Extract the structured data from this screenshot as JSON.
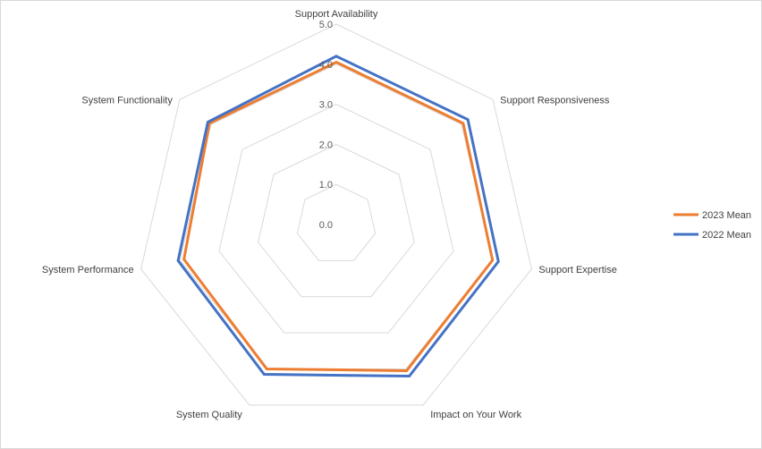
{
  "chart_data": {
    "type": "radar",
    "categories": [
      "Support Availability",
      "Support Responsiveness",
      "Support Expertise",
      "Impact on Your Work",
      "System Quality",
      "System Performance",
      "System Functionality"
    ],
    "series": [
      {
        "name": "2023 Mean",
        "color": "#ED7D31",
        "values": [
          4.05,
          4.05,
          4.0,
          4.05,
          4.0,
          3.9,
          4.05
        ]
      },
      {
        "name": "2022 Mean",
        "color": "#4472C4",
        "values": [
          4.2,
          4.2,
          4.15,
          4.2,
          4.15,
          4.05,
          4.1
        ]
      }
    ],
    "rlim": [
      0,
      5
    ],
    "ticks": [
      "0.0",
      "1.0",
      "2.0",
      "3.0",
      "4.0",
      "5.0"
    ],
    "grid": true,
    "grid_color": "#d9d9d9",
    "legend_position": "right"
  }
}
